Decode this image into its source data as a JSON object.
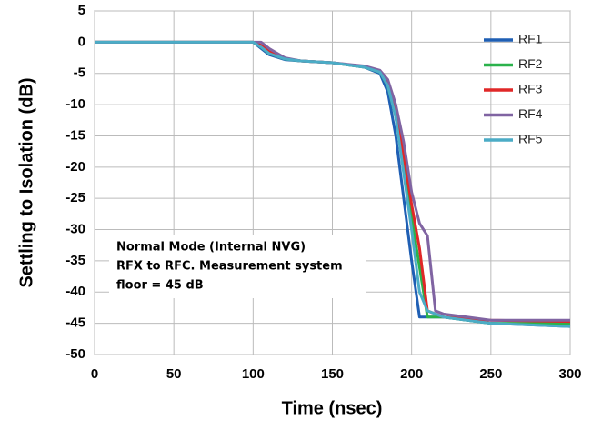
{
  "chart_data": {
    "type": "line",
    "xlabel": "Time (nsec)",
    "ylabel": "Settling to Isolation (dB)",
    "annotation": [
      "Normal Mode (Internal NVG)",
      "RFX to RFC. Measurement system",
      "floor = 45 dB"
    ],
    "x": [
      0,
      90,
      100,
      105,
      110,
      120,
      130,
      150,
      170,
      180,
      185,
      190,
      195,
      200,
      205,
      210,
      215,
      220,
      250,
      300
    ],
    "series": [
      {
        "name": "RF1",
        "color": "#1f5fb4",
        "values": [
          0,
          0,
          0,
          -1,
          -2,
          -2.8,
          -3,
          -3.3,
          -4,
          -5,
          -8,
          -15,
          -25,
          -35,
          -44,
          -44,
          -44,
          -44,
          -45,
          -45.5
        ]
      },
      {
        "name": "RF2",
        "color": "#2bb24c",
        "values": [
          0,
          0,
          0,
          -0.8,
          -1.8,
          -2.7,
          -3,
          -3.3,
          -4,
          -4.8,
          -7,
          -12,
          -20,
          -28,
          -36,
          -44,
          -44,
          -44,
          -45,
          -45
        ]
      },
      {
        "name": "RF3",
        "color": "#e02828",
        "values": [
          0,
          0,
          0,
          -0.5,
          -1.5,
          -2.6,
          -3,
          -3.3,
          -3.9,
          -4.6,
          -6.5,
          -11,
          -18,
          -26,
          -33,
          -43,
          -43.5,
          -44,
          -44.5,
          -44.7
        ]
      },
      {
        "name": "RF4",
        "color": "#8064a2",
        "values": [
          0,
          0,
          0,
          0,
          -1,
          -2.5,
          -3,
          -3.3,
          -3.8,
          -4.5,
          -6,
          -10,
          -16,
          -24,
          -29,
          -31,
          -43,
          -43.5,
          -44.5,
          -44.5
        ]
      },
      {
        "name": "RF5",
        "color": "#4bacc6",
        "values": [
          0,
          0,
          0,
          -0.8,
          -1.8,
          -2.7,
          -3,
          -3.3,
          -4,
          -4.8,
          -7,
          -12,
          -21,
          -30,
          -40,
          -43,
          -43.5,
          -44,
          -45,
          -45.5
        ]
      }
    ],
    "xlim": [
      0,
      300
    ],
    "xticks": [
      0,
      50,
      100,
      150,
      200,
      250,
      300
    ],
    "ylim": [
      -50,
      5
    ],
    "yticks": [
      5,
      0,
      -5,
      -10,
      -15,
      -20,
      -25,
      -30,
      -35,
      -40,
      -45,
      -50
    ],
    "grid": true,
    "legend": "top-right"
  }
}
